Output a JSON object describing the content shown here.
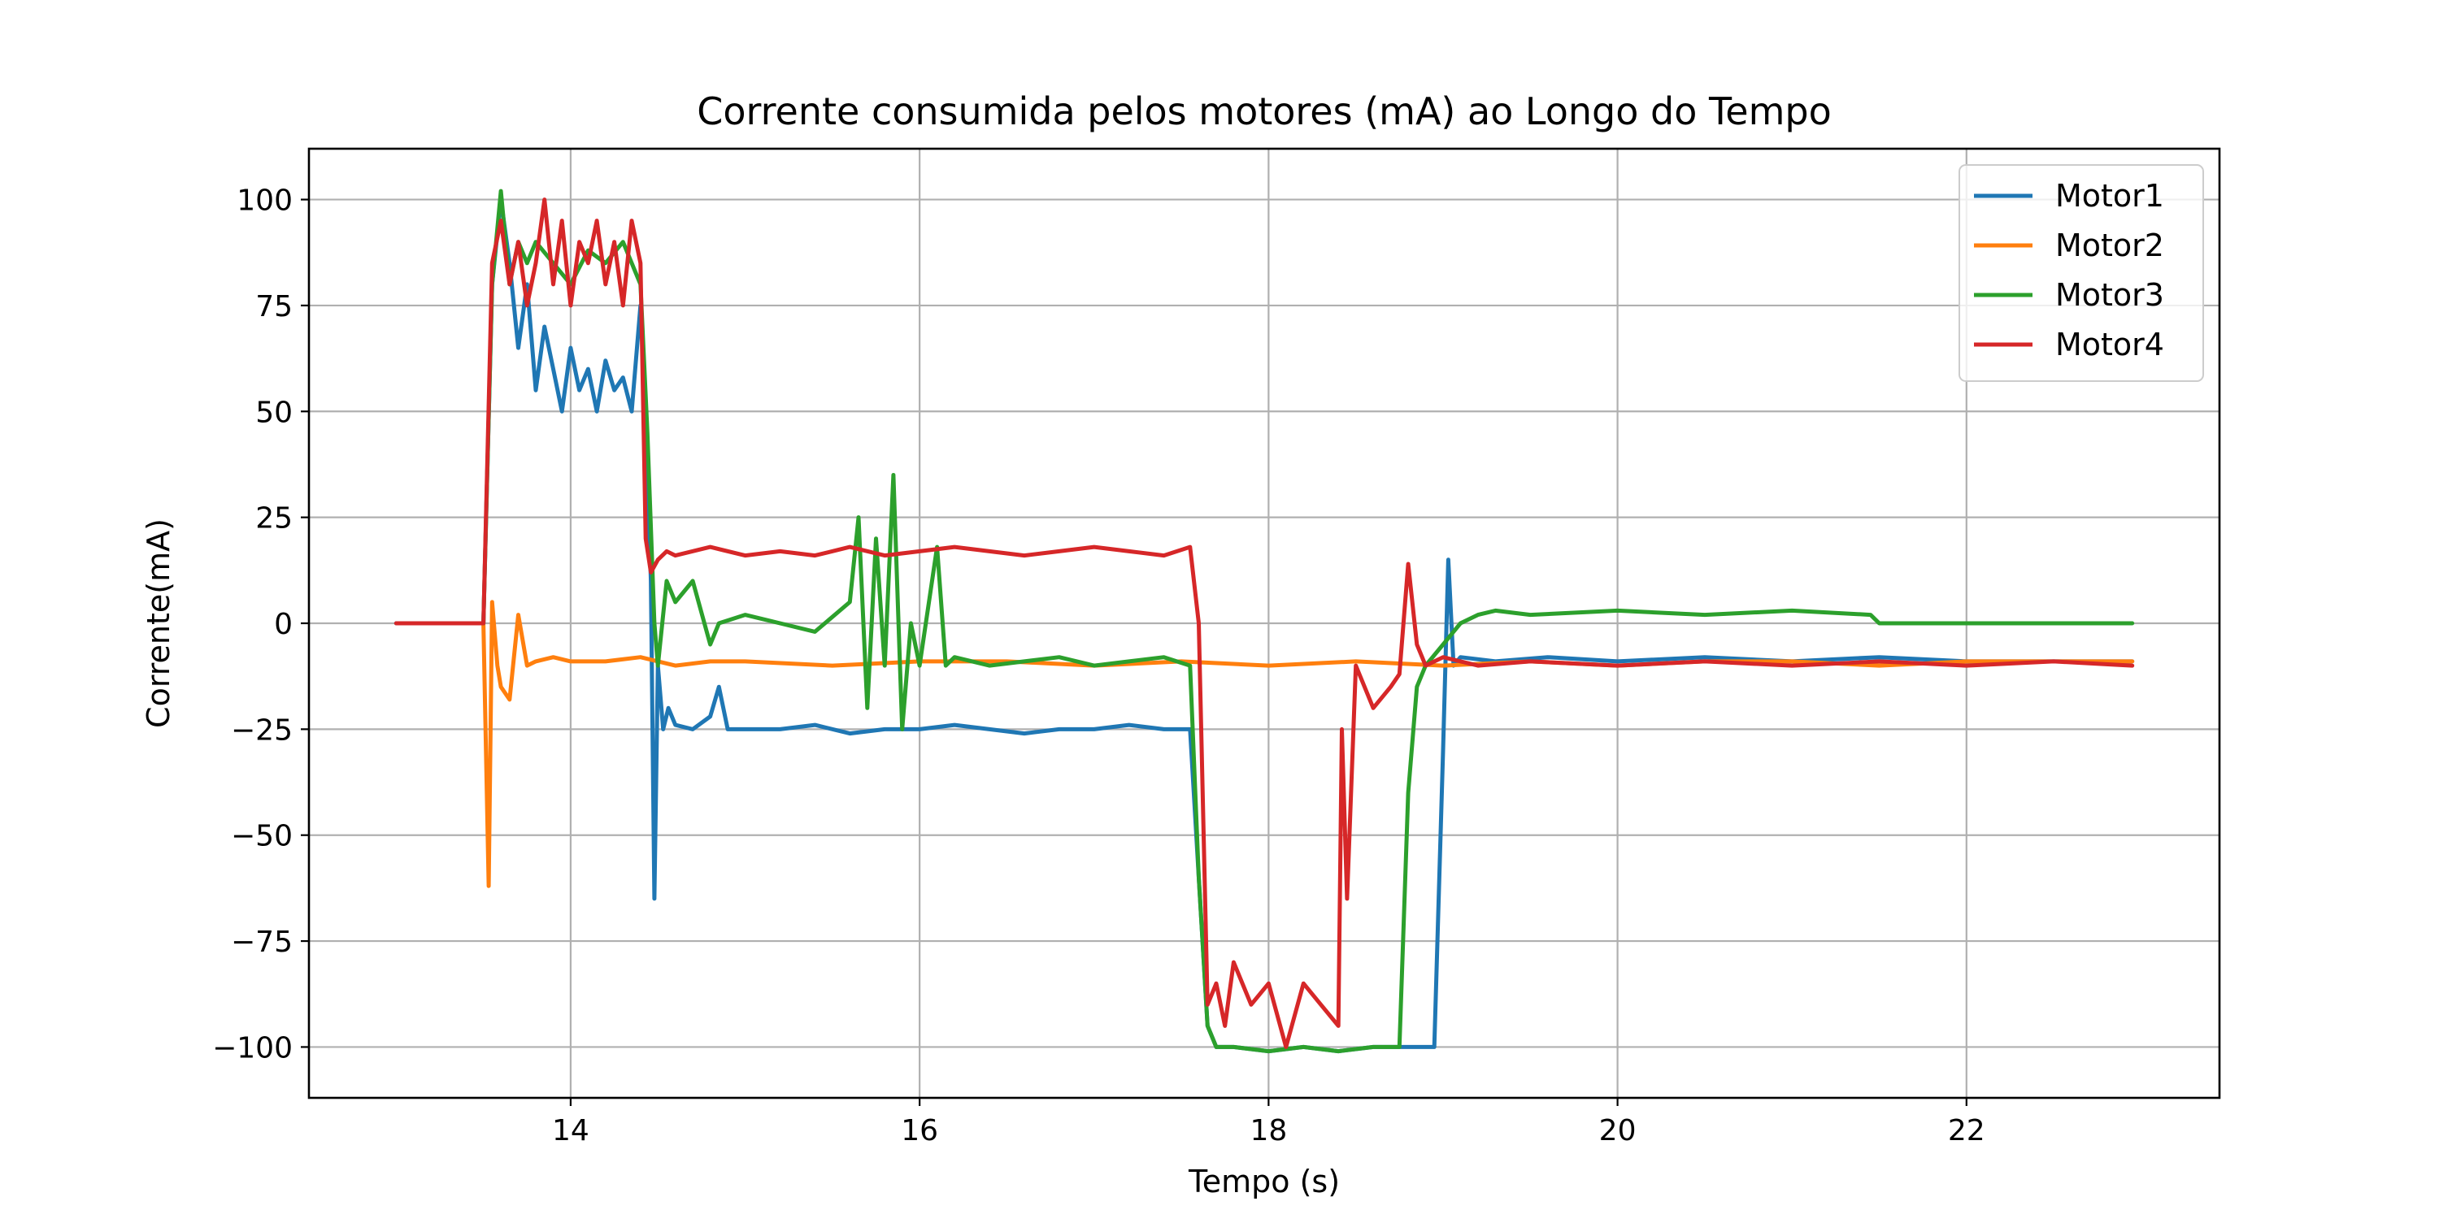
{
  "chart_data": {
    "type": "line",
    "title": "Corrente consumida pelos motores (mA) ao Longo do Tempo",
    "xlabel": "Tempo (s)",
    "ylabel": "Corrente(mA)",
    "xlim": [
      12.5,
      23.45
    ],
    "ylim": [
      -112,
      112
    ],
    "xticks": [
      14,
      16,
      18,
      20,
      22
    ],
    "yticks": [
      100,
      75,
      50,
      25,
      0,
      -25,
      -50,
      -75,
      -100
    ],
    "xtick_labels": [
      "14",
      "16",
      "18",
      "20",
      "22"
    ],
    "ytick_labels": [
      "100",
      "75",
      "50",
      "25",
      "0",
      "−25",
      "−50",
      "−75",
      "−100"
    ],
    "grid": true,
    "legend_position": "top-right",
    "series": [
      {
        "name": "Motor1",
        "color": "#1f77b4",
        "x": [
          13.0,
          13.5,
          13.55,
          13.6,
          13.65,
          13.7,
          13.75,
          13.8,
          13.85,
          13.9,
          13.95,
          14.0,
          14.05,
          14.1,
          14.15,
          14.2,
          14.25,
          14.3,
          14.35,
          14.4,
          14.43,
          14.46,
          14.48,
          14.5,
          14.53,
          14.56,
          14.6,
          14.7,
          14.8,
          14.85,
          14.9,
          15.0,
          15.2,
          15.4,
          15.6,
          15.8,
          16.0,
          16.2,
          16.4,
          16.6,
          16.8,
          17.0,
          17.2,
          17.4,
          17.55,
          17.6,
          17.65,
          17.7,
          17.8,
          18.0,
          18.2,
          18.4,
          18.6,
          18.8,
          18.95,
          19.0,
          19.03,
          19.06,
          19.1,
          19.3,
          19.6,
          20.0,
          20.5,
          21.0,
          21.5,
          22.0,
          22.5,
          22.95
        ],
        "y": [
          0,
          0,
          80,
          100,
          85,
          65,
          80,
          55,
          70,
          60,
          50,
          65,
          55,
          60,
          50,
          62,
          55,
          58,
          50,
          75,
          50,
          10,
          -65,
          -10,
          -25,
          -20,
          -24,
          -25,
          -22,
          -15,
          -25,
          -25,
          -25,
          -24,
          -26,
          -25,
          -25,
          -24,
          -25,
          -26,
          -25,
          -25,
          -24,
          -25,
          -25,
          -60,
          -95,
          -100,
          -100,
          -101,
          -100,
          -101,
          -100,
          -100,
          -100,
          -30,
          15,
          -10,
          -8,
          -9,
          -8,
          -9,
          -8,
          -9,
          -8,
          -9,
          -9,
          -9
        ]
      },
      {
        "name": "Motor2",
        "color": "#ff7f0e",
        "x": [
          13.5,
          13.53,
          13.55,
          13.58,
          13.6,
          13.65,
          13.7,
          13.75,
          13.8,
          13.9,
          14.0,
          14.2,
          14.4,
          14.6,
          14.8,
          15.0,
          15.5,
          16.0,
          16.5,
          17.0,
          17.5,
          18.0,
          18.5,
          19.0,
          19.5,
          20.0,
          20.5,
          21.0,
          21.5,
          22.0,
          22.5,
          22.95
        ],
        "y": [
          0,
          -62,
          5,
          -10,
          -15,
          -18,
          2,
          -10,
          -9,
          -8,
          -9,
          -9,
          -8,
          -10,
          -9,
          -9,
          -10,
          -9,
          -9,
          -10,
          -9,
          -10,
          -9,
          -10,
          -9,
          -10,
          -9,
          -9,
          -10,
          -9,
          -9,
          -9
        ]
      },
      {
        "name": "Motor3",
        "color": "#2ca02c",
        "x": [
          13.5,
          13.55,
          13.6,
          13.65,
          13.7,
          13.75,
          13.8,
          13.9,
          14.0,
          14.1,
          14.2,
          14.3,
          14.4,
          14.44,
          14.48,
          14.5,
          14.55,
          14.6,
          14.7,
          14.8,
          14.85,
          15.0,
          15.2,
          15.4,
          15.6,
          15.65,
          15.7,
          15.75,
          15.8,
          15.85,
          15.9,
          15.95,
          16.0,
          16.1,
          16.15,
          16.2,
          16.4,
          16.6,
          16.8,
          17.0,
          17.2,
          17.4,
          17.55,
          17.6,
          17.65,
          17.7,
          17.8,
          18.0,
          18.2,
          18.4,
          18.6,
          18.75,
          18.8,
          18.85,
          18.9,
          19.0,
          19.1,
          19.2,
          19.3,
          19.5,
          20.0,
          20.5,
          21.0,
          21.45,
          21.5,
          22.0,
          22.5,
          22.95
        ],
        "y": [
          0,
          80,
          102,
          80,
          90,
          85,
          90,
          85,
          80,
          88,
          85,
          90,
          80,
          45,
          0,
          -10,
          10,
          5,
          10,
          -5,
          0,
          2,
          0,
          -2,
          5,
          25,
          -20,
          20,
          -10,
          35,
          -25,
          0,
          -10,
          18,
          -10,
          -8,
          -10,
          -9,
          -8,
          -10,
          -9,
          -8,
          -10,
          -60,
          -95,
          -100,
          -100,
          -101,
          -100,
          -101,
          -100,
          -100,
          -40,
          -15,
          -10,
          -5,
          0,
          2,
          3,
          2,
          3,
          2,
          3,
          2,
          0,
          0,
          0,
          0
        ]
      },
      {
        "name": "Motor4",
        "color": "#d62728",
        "x": [
          13.0,
          13.5,
          13.55,
          13.6,
          13.65,
          13.7,
          13.75,
          13.8,
          13.85,
          13.9,
          13.95,
          14.0,
          14.05,
          14.1,
          14.15,
          14.2,
          14.25,
          14.3,
          14.35,
          14.4,
          14.43,
          14.46,
          14.5,
          14.55,
          14.6,
          14.8,
          15.0,
          15.2,
          15.4,
          15.6,
          15.8,
          16.0,
          16.2,
          16.4,
          16.6,
          16.8,
          17.0,
          17.2,
          17.4,
          17.55,
          17.6,
          17.65,
          17.7,
          17.75,
          17.8,
          17.9,
          18.0,
          18.1,
          18.2,
          18.3,
          18.4,
          18.42,
          18.45,
          18.5,
          18.6,
          18.7,
          18.75,
          18.8,
          18.85,
          18.9,
          19.0,
          19.2,
          19.5,
          20.0,
          20.5,
          21.0,
          21.5,
          22.0,
          22.5,
          22.95
        ],
        "y": [
          0,
          0,
          85,
          95,
          80,
          90,
          75,
          85,
          100,
          80,
          95,
          75,
          90,
          85,
          95,
          80,
          90,
          75,
          95,
          85,
          20,
          12,
          15,
          17,
          16,
          18,
          16,
          17,
          16,
          18,
          16,
          17,
          18,
          17,
          16,
          17,
          18,
          17,
          16,
          18,
          0,
          -90,
          -85,
          -95,
          -80,
          -90,
          -85,
          -100,
          -85,
          -90,
          -95,
          -25,
          -65,
          -10,
          -20,
          -15,
          -12,
          14,
          -5,
          -10,
          -8,
          -10,
          -9,
          -10,
          -9,
          -10,
          -9,
          -10,
          -9,
          -10
        ]
      }
    ]
  }
}
